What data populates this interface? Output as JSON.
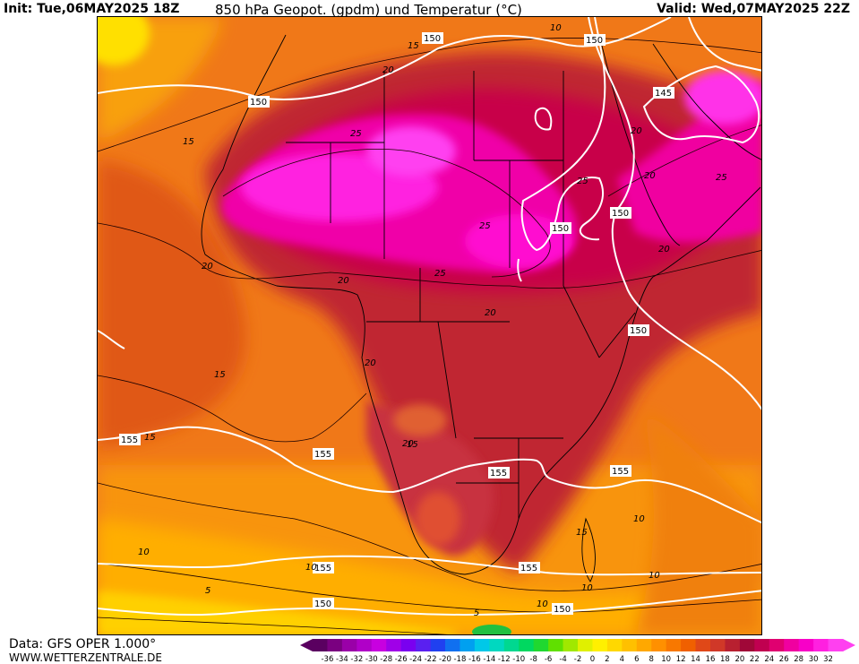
{
  "header": {
    "init": "Init: Tue,06MAY2025 18Z",
    "title": "850 hPa Geopot. (gpdm) und Temperatur (°C)",
    "valid": "Valid: Wed,07MAY2025 22Z"
  },
  "footer": {
    "source": "Data: GFS OPER 1.000°",
    "site": "WWW.WETTERZENTRALE.DE"
  },
  "geopotential_labels": [
    {
      "text": "150"
    },
    {
      "text": "150"
    },
    {
      "text": "150"
    },
    {
      "text": "145"
    },
    {
      "text": "150"
    },
    {
      "text": "150"
    },
    {
      "text": "150"
    },
    {
      "text": "155"
    },
    {
      "text": "155"
    },
    {
      "text": "155"
    },
    {
      "text": "155"
    },
    {
      "text": "155"
    },
    {
      "text": "155"
    },
    {
      "text": "150"
    },
    {
      "text": "150"
    }
  ],
  "isotherm_labels": [
    "15",
    "20",
    "25",
    "15",
    "25",
    "25",
    "25",
    "20",
    "20",
    "20",
    "20",
    "20",
    "20",
    "20",
    "15",
    "15",
    "10",
    "10",
    "15",
    "10",
    "10",
    "5",
    "10",
    "5",
    "10",
    "10",
    "15",
    "20",
    "25"
  ],
  "colorbar": {
    "ticks": [
      "-36",
      "-34",
      "-32",
      "-30",
      "-28",
      "-26",
      "-24",
      "-22",
      "-20",
      "-18",
      "-16",
      "-14",
      "-12",
      "-10",
      "-8",
      "-6",
      "-4",
      "-2",
      "0",
      "2",
      "4",
      "6",
      "8",
      "10",
      "12",
      "14",
      "16",
      "18",
      "20",
      "22",
      "24",
      "26",
      "28",
      "30",
      "32"
    ],
    "colors": [
      "#5a0060",
      "#7a0080",
      "#9a00a8",
      "#b000c8",
      "#c800e0",
      "#a000e8",
      "#7a00f0",
      "#5a20f0",
      "#2040f0",
      "#1070f0",
      "#00a0f0",
      "#00c8e8",
      "#00d8c0",
      "#00d890",
      "#00d860",
      "#20d830",
      "#60e000",
      "#a0e800",
      "#e0f000",
      "#fff000",
      "#ffd800",
      "#ffc000",
      "#ffa800",
      "#ff9000",
      "#f87800",
      "#f06000",
      "#e04818",
      "#d03828",
      "#b82030",
      "#a00838",
      "#c00050",
      "#e00070",
      "#f000a0",
      "#f800c8",
      "#ff20e0",
      "#ff40f0"
    ]
  }
}
